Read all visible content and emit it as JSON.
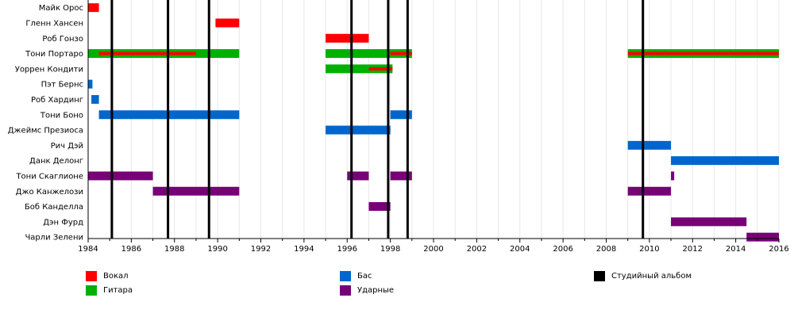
{
  "chart_data": {
    "type": "timeline",
    "members": [
      "Майк Орос",
      "Гленн Хансен",
      "Роб Гонзо",
      "Тони Портаро",
      "Уоррен Кондити",
      "Пэт Бернс",
      "Роб Хардинг",
      "Тони Боно",
      "Джеймс Презиоса",
      "Рич Дэй",
      "Данк Делонг",
      "Тони Скаглионе",
      "Джо Канжелози",
      "Боб Канделла",
      "Дэн Фурд",
      "Чарли Зелени"
    ],
    "x_ticks": [
      "1984",
      "1986",
      "1988",
      "1990",
      "1992",
      "1994",
      "1996",
      "1998",
      "2000",
      "2002",
      "2004",
      "2006",
      "2008",
      "2010",
      "2012",
      "2014",
      "2016"
    ],
    "xlim": [
      1984,
      2016
    ],
    "roles": {
      "vocals": {
        "label": "Вокал",
        "color": "#ff0000"
      },
      "guitar": {
        "label": "Гитара",
        "color": "#00b000"
      },
      "bass": {
        "label": "Бас",
        "color": "#0066cc"
      },
      "drums": {
        "label": "Ударные",
        "color": "#770077"
      },
      "album": {
        "label": "Студийный альбом",
        "color": "#000000"
      }
    },
    "albums": [
      1985.1,
      1987.7,
      1989.6,
      1996.2,
      1997.9,
      1998.8,
      2009.7
    ],
    "bars": [
      {
        "member": 0,
        "role": "vocals",
        "start": 1984.0,
        "end": 1984.5,
        "layer": "main"
      },
      {
        "member": 1,
        "role": "vocals",
        "start": 1989.9,
        "end": 1991.0,
        "layer": "main"
      },
      {
        "member": 2,
        "role": "vocals",
        "start": 1995.0,
        "end": 1997.0,
        "layer": "main"
      },
      {
        "member": 3,
        "role": "guitar",
        "start": 1984.0,
        "end": 1991.0,
        "layer": "main"
      },
      {
        "member": 3,
        "role": "vocals",
        "start": 1984.5,
        "end": 1989.0,
        "layer": "overlay"
      },
      {
        "member": 3,
        "role": "guitar",
        "start": 1995.0,
        "end": 1999.0,
        "layer": "main"
      },
      {
        "member": 3,
        "role": "vocals",
        "start": 1998.0,
        "end": 1999.0,
        "layer": "overlay"
      },
      {
        "member": 3,
        "role": "guitar",
        "start": 2009.0,
        "end": 2016.0,
        "layer": "main"
      },
      {
        "member": 3,
        "role": "vocals",
        "start": 2009.0,
        "end": 2016.0,
        "layer": "overlay"
      },
      {
        "member": 4,
        "role": "guitar",
        "start": 1995.0,
        "end": 1998.1,
        "layer": "main"
      },
      {
        "member": 4,
        "role": "vocals",
        "start": 1997.0,
        "end": 1998.1,
        "layer": "overlay"
      },
      {
        "member": 5,
        "role": "bass",
        "start": 1984.0,
        "end": 1984.2,
        "layer": "main"
      },
      {
        "member": 6,
        "role": "bass",
        "start": 1984.15,
        "end": 1984.5,
        "layer": "main"
      },
      {
        "member": 7,
        "role": "bass",
        "start": 1984.5,
        "end": 1991.0,
        "layer": "main"
      },
      {
        "member": 7,
        "role": "bass",
        "start": 1998.0,
        "end": 1999.0,
        "layer": "main"
      },
      {
        "member": 8,
        "role": "bass",
        "start": 1995.0,
        "end": 1998.0,
        "layer": "main"
      },
      {
        "member": 9,
        "role": "bass",
        "start": 2009.0,
        "end": 2011.0,
        "layer": "main"
      },
      {
        "member": 10,
        "role": "bass",
        "start": 2011.0,
        "end": 2016.0,
        "layer": "main"
      },
      {
        "member": 11,
        "role": "drums",
        "start": 1984.0,
        "end": 1987.0,
        "layer": "main"
      },
      {
        "member": 11,
        "role": "drums",
        "start": 1996.0,
        "end": 1997.0,
        "layer": "main"
      },
      {
        "member": 11,
        "role": "drums",
        "start": 1998.0,
        "end": 1999.0,
        "layer": "main"
      },
      {
        "member": 11,
        "role": "drums",
        "start": 2011.0,
        "end": 2011.15,
        "layer": "main"
      },
      {
        "member": 12,
        "role": "drums",
        "start": 1987.0,
        "end": 1991.0,
        "layer": "main"
      },
      {
        "member": 12,
        "role": "drums",
        "start": 2009.0,
        "end": 2011.0,
        "layer": "main"
      },
      {
        "member": 13,
        "role": "drums",
        "start": 1997.0,
        "end": 1998.0,
        "layer": "main"
      },
      {
        "member": 14,
        "role": "drums",
        "start": 2011.0,
        "end": 2014.5,
        "layer": "main"
      },
      {
        "member": 15,
        "role": "drums",
        "start": 2014.5,
        "end": 2016.0,
        "layer": "main"
      }
    ]
  },
  "legend": [
    {
      "key": "vocals",
      "label": "Вокал"
    },
    {
      "key": "guitar",
      "label": "Гитара"
    },
    {
      "key": "bass",
      "label": "Бас"
    },
    {
      "key": "drums",
      "label": "Ударные"
    },
    {
      "key": "album",
      "label": "Студийный альбом"
    }
  ]
}
